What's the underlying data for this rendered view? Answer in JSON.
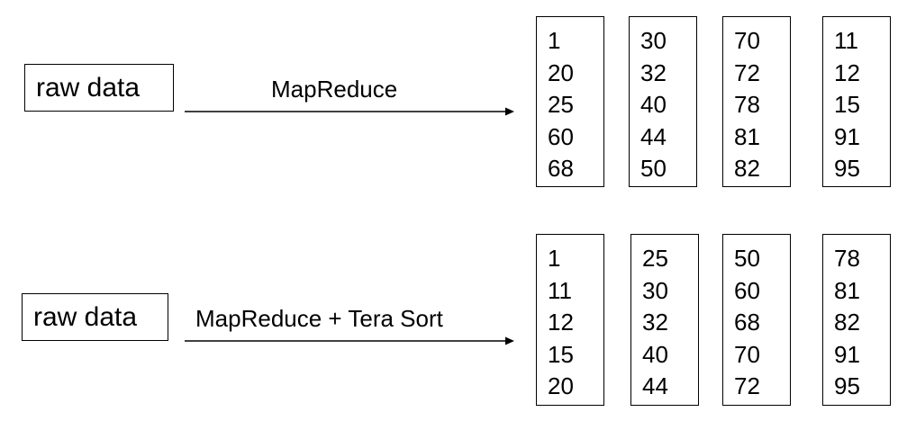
{
  "top_row": {
    "raw_label": "raw data",
    "process_label": "MapReduce",
    "partitions": [
      {
        "values": [
          "1",
          "20",
          "25",
          "60",
          "68"
        ]
      },
      {
        "values": [
          "30",
          "32",
          "40",
          "44",
          "50"
        ]
      },
      {
        "values": [
          "70",
          "72",
          "78",
          "81",
          "82"
        ]
      },
      {
        "values": [
          "11",
          "12",
          "15",
          "91",
          "95"
        ]
      }
    ]
  },
  "bottom_row": {
    "raw_label": "raw data",
    "process_label": "MapReduce + Tera Sort",
    "partitions": [
      {
        "values": [
          "1",
          "11",
          "12",
          "15",
          "20"
        ]
      },
      {
        "values": [
          "25",
          "30",
          "32",
          "40",
          "44"
        ]
      },
      {
        "values": [
          "50",
          "60",
          "68",
          "70",
          "72"
        ]
      },
      {
        "values": [
          "78",
          "81",
          "82",
          "91",
          "95"
        ]
      }
    ]
  }
}
